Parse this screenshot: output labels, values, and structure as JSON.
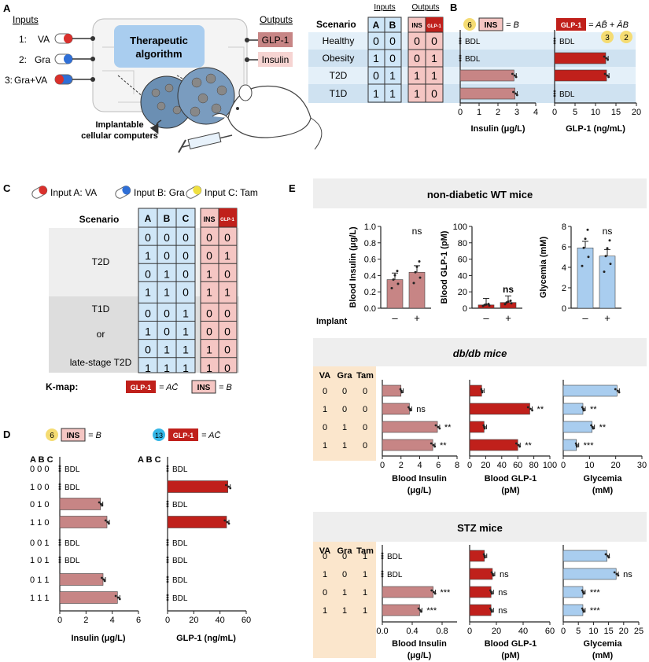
{
  "panelA": {
    "label": "A",
    "inputs_heading": "Inputs",
    "outputs_heading": "Outputs",
    "inputs": [
      {
        "idx": "1:",
        "name": "VA"
      },
      {
        "idx": "2:",
        "name": "Gra"
      },
      {
        "idx": "3:",
        "name": "Gra+VA"
      }
    ],
    "algorithm": [
      "Therapeutic",
      "algorithm"
    ],
    "outputs": [
      "GLP-1",
      "Insulin"
    ],
    "implant_label": [
      "Implantable",
      "cellular computers"
    ]
  },
  "truth1": {
    "scenario_header": "Scenario",
    "inputs_header": "Inputs",
    "outputs_header": "Outputs",
    "cols": [
      "A",
      "B"
    ],
    "out_cols": [
      "INS",
      "GLP-1"
    ],
    "rows": [
      {
        "name": "Healthy",
        "a": "0",
        "b": "0",
        "ins": "0",
        "glp": "0"
      },
      {
        "name": "Obesity",
        "a": "1",
        "b": "0",
        "ins": "0",
        "glp": "1"
      },
      {
        "name": "T2D",
        "a": "0",
        "b": "1",
        "ins": "1",
        "glp": "1"
      },
      {
        "name": "T1D",
        "a": "1",
        "b": "1",
        "ins": "1",
        "glp": "0"
      }
    ]
  },
  "panelB": {
    "label": "B",
    "ins_badge_num": "6",
    "ins_badge": "INS",
    "ins_formula": "= B",
    "glp_badge": "GLP-1",
    "glp_formula": "= AB̄ + ĀB",
    "glp_num1": "3",
    "glp_num2": "2",
    "bdl": "BDL",
    "ins_xlabel": "Insulin (μg/L)",
    "glp_xlabel": "GLP-1 (ng/mL)",
    "ins_ticks": [
      "0",
      "1",
      "2",
      "3",
      "4"
    ],
    "glp_ticks": [
      "0",
      "5",
      "10",
      "15",
      "20"
    ]
  },
  "panelC": {
    "label": "C",
    "legend": [
      "Input A: VA",
      "Input B: Gra",
      "Input C: Tam"
    ],
    "scenario_header": "Scenario",
    "cols": [
      "A",
      "B",
      "C"
    ],
    "out_cols": [
      "INS",
      "GLP-1"
    ],
    "group1": "T2D",
    "group2": [
      "T1D",
      "or",
      "late-stage T2D"
    ],
    "rows": [
      [
        "0",
        "0",
        "0",
        "0",
        "0"
      ],
      [
        "1",
        "0",
        "0",
        "0",
        "1"
      ],
      [
        "0",
        "1",
        "0",
        "1",
        "0"
      ],
      [
        "1",
        "1",
        "0",
        "1",
        "1"
      ],
      [
        "0",
        "0",
        "1",
        "0",
        "0"
      ],
      [
        "1",
        "0",
        "1",
        "0",
        "0"
      ],
      [
        "0",
        "1",
        "1",
        "1",
        "0"
      ],
      [
        "1",
        "1",
        "1",
        "1",
        "0"
      ]
    ],
    "kmap_label": "K-map:",
    "kmap_glp": "GLP-1",
    "kmap_glp_formula": "= AC̄",
    "kmap_ins": "INS",
    "kmap_ins_formula": "= B"
  },
  "panelD": {
    "label": "D",
    "ins_num": "6",
    "ins_badge": "INS",
    "ins_formula": "= B",
    "glp_num": "13",
    "glp_badge": "GLP-1",
    "glp_formula": "= AC̄",
    "abc_header": "A B C",
    "row_labels": [
      "0 0 0",
      "1 0 0",
      "0 1 0",
      "1 1 0",
      "0 0 1",
      "1 0 1",
      "0 1 1",
      "1 1 1"
    ],
    "bdl": "BDL",
    "ins_xlabel": "Insulin (μg/L)",
    "glp_xlabel": "GLP-1 (ng/mL)",
    "ins_ticks": [
      "0",
      "2",
      "4",
      "6"
    ],
    "glp_ticks": [
      "0",
      "20",
      "40",
      "60"
    ]
  },
  "panelE": {
    "label": "E",
    "wt_title": "non-diabetic WT mice",
    "db_title": "db/db mice",
    "stz_title": "STZ mice",
    "wt_ylabels": [
      "Blood Insulin (μg/L)",
      "Blood GLP-1 (pM)",
      "Glycemia (mM)"
    ],
    "implant_label": "Implant",
    "implant_ticks": [
      "–",
      "+"
    ],
    "wt_ticks_ins": [
      "0.0",
      "0.2",
      "0.4",
      "0.6",
      "0.8",
      "1.0"
    ],
    "wt_ticks_glp": [
      "0",
      "20",
      "40",
      "60",
      "80",
      "100"
    ],
    "wt_ticks_gly": [
      "0",
      "2",
      "4",
      "6",
      "8"
    ],
    "ns": "ns",
    "abc_headers": [
      "VA",
      "Gra",
      "Tam"
    ],
    "db_rows": [
      [
        "0",
        "0",
        "0"
      ],
      [
        "1",
        "0",
        "0"
      ],
      [
        "0",
        "1",
        "0"
      ],
      [
        "1",
        "1",
        "0"
      ]
    ],
    "stz_rows": [
      [
        "0",
        "0",
        "1"
      ],
      [
        "1",
        "0",
        "1"
      ],
      [
        "0",
        "1",
        "1"
      ],
      [
        "1",
        "1",
        "1"
      ]
    ],
    "db_xlabels": [
      [
        "Blood Insulin",
        "(μg/L)"
      ],
      [
        "Blood GLP-1",
        "(pM)"
      ],
      [
        "Glycemia",
        "(mM)"
      ]
    ],
    "stz_xlabels": [
      [
        "Blood Insulin",
        "(μg/L)"
      ],
      [
        "Blood GLP-1",
        "(pM)"
      ],
      [
        "Glycemia",
        "(mM)"
      ]
    ],
    "db_ticks_ins": [
      "0",
      "2",
      "4",
      "6",
      "8"
    ],
    "db_ticks_glp": [
      "0",
      "20",
      "40",
      "60",
      "80",
      "100"
    ],
    "db_ticks_gly": [
      "0",
      "10",
      "20",
      "30"
    ],
    "stz_ticks_ins": [
      "0.0",
      "0.4",
      "0.8"
    ],
    "stz_ticks_glp": [
      "0",
      "20",
      "40",
      "60"
    ],
    "stz_ticks_gly": [
      "0",
      "5",
      "10",
      "15",
      "20",
      "25"
    ],
    "bdl": "BDL"
  },
  "colors": {
    "insulin": "#c78585",
    "glp1": "#c0201b",
    "glycemia": "#a9cdef",
    "input_table": "#cfe6f7",
    "output_table": "#f5c6c3",
    "band_a": "#e4f0f9",
    "band_b": "#cfe2f1",
    "tan": "#fbe6cc",
    "panel_bg": "#eeeeee"
  },
  "chart_data": [
    {
      "type": "bar",
      "id": "B-insulin",
      "categories": [
        "Healthy",
        "Obesity",
        "T2D",
        "T1D"
      ],
      "values": [
        null,
        null,
        2.85,
        2.9
      ],
      "labels": [
        "BDL",
        "BDL",
        "",
        ""
      ],
      "xlabel": "Insulin (μg/L)",
      "xlim": [
        0,
        4
      ]
    },
    {
      "type": "bar",
      "id": "B-glp1",
      "categories": [
        "Healthy",
        "Obesity",
        "T2D",
        "T1D"
      ],
      "values": [
        null,
        12.5,
        12.7,
        null
      ],
      "labels": [
        "BDL",
        "",
        "",
        "BDL"
      ],
      "xlabel": "GLP-1 (ng/mL)",
      "xlim": [
        0,
        20
      ]
    },
    {
      "type": "bar",
      "id": "D-insulin",
      "categories": [
        "0 0 0",
        "1 0 0",
        "0 1 0",
        "1 1 0",
        "0 0 1",
        "1 0 1",
        "0 1 1",
        "1 1 1"
      ],
      "values": [
        null,
        null,
        3.1,
        3.6,
        null,
        null,
        3.3,
        4.4
      ],
      "xlabel": "Insulin (μg/L)",
      "xlim": [
        0,
        6
      ]
    },
    {
      "type": "bar",
      "id": "D-glp1",
      "categories": [
        "0 0 0",
        "1 0 0",
        "0 1 0",
        "1 1 0",
        "0 0 1",
        "1 0 1",
        "0 1 1",
        "1 1 1"
      ],
      "values": [
        null,
        46,
        null,
        45,
        null,
        null,
        null,
        null
      ],
      "xlabel": "GLP-1 (ng/mL)",
      "xlim": [
        0,
        60
      ]
    },
    {
      "type": "bar",
      "id": "E-wt-insulin",
      "categories": [
        "–",
        "+"
      ],
      "values": [
        0.35,
        0.44
      ],
      "ylabel": "Blood Insulin (μg/L)",
      "ylim": [
        0,
        1.0
      ]
    },
    {
      "type": "bar",
      "id": "E-wt-glp1",
      "categories": [
        "–",
        "+"
      ],
      "values": [
        4,
        7
      ],
      "ylabel": "Blood GLP-1 (pM)",
      "ylim": [
        0,
        100
      ]
    },
    {
      "type": "bar",
      "id": "E-wt-glycemia",
      "categories": [
        "–",
        "+"
      ],
      "values": [
        5.9,
        5.1
      ],
      "ylabel": "Glycemia (mM)",
      "ylim": [
        0,
        8
      ]
    },
    {
      "type": "bar",
      "id": "E-db-insulin",
      "categories": [
        "000",
        "100",
        "010",
        "110"
      ],
      "values": [
        2.0,
        2.9,
        5.9,
        5.4
      ],
      "xlabel": "Blood Insulin (μg/L)",
      "xlim": [
        0,
        8
      ]
    },
    {
      "type": "bar",
      "id": "E-db-glp1",
      "categories": [
        "000",
        "100",
        "010",
        "110"
      ],
      "values": [
        15,
        75,
        18,
        60
      ],
      "xlabel": "Blood GLP-1 (pM)",
      "xlim": [
        0,
        100
      ]
    },
    {
      "type": "bar",
      "id": "E-db-glycemia",
      "categories": [
        "000",
        "100",
        "010",
        "110"
      ],
      "values": [
        20.5,
        7.5,
        11,
        5
      ],
      "xlabel": "Glycemia (mM)",
      "xlim": [
        0,
        30
      ]
    },
    {
      "type": "bar",
      "id": "E-stz-insulin",
      "categories": [
        "001",
        "101",
        "011",
        "111"
      ],
      "values": [
        null,
        null,
        0.68,
        0.5
      ],
      "xlabel": "Blood Insulin (μg/L)",
      "xlim": [
        0,
        1.0
      ]
    },
    {
      "type": "bar",
      "id": "E-stz-glp1",
      "categories": [
        "001",
        "101",
        "011",
        "111"
      ],
      "values": [
        11,
        17,
        16,
        16
      ],
      "xlabel": "Blood GLP-1 (pM)",
      "xlim": [
        0,
        60
      ]
    },
    {
      "type": "bar",
      "id": "E-stz-glycemia",
      "categories": [
        "001",
        "101",
        "011",
        "111"
      ],
      "values": [
        14.5,
        17.5,
        6.5,
        6.5
      ],
      "xlabel": "Glycemia (mM)",
      "xlim": [
        0,
        25
      ]
    }
  ]
}
